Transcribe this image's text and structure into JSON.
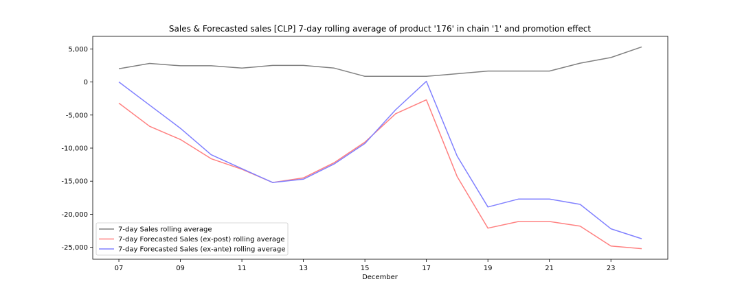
{
  "chart_data": {
    "type": "line",
    "title": "Sales & Forecasted sales [CLP] 7-day rolling average of product '176' in chain '1' and promotion effect",
    "xlabel": "December",
    "ylabel": "",
    "x": [
      7,
      8,
      9,
      10,
      11,
      12,
      13,
      14,
      15,
      16,
      17,
      18,
      19,
      20,
      21,
      22,
      23,
      24
    ],
    "xlim": [
      6.15,
      24.85
    ],
    "ylim": [
      -26800,
      6900
    ],
    "x_ticks": [
      7,
      9,
      11,
      13,
      15,
      17,
      19,
      21,
      23
    ],
    "x_tick_labels": [
      "07",
      "09",
      "11",
      "13",
      "15",
      "17",
      "19",
      "21",
      "23"
    ],
    "y_ticks": [
      5000,
      0,
      -5000,
      -10000,
      -15000,
      -20000,
      -25000
    ],
    "y_tick_labels": [
      "5,000",
      "0",
      "-5,000",
      "-10,000",
      "-15,000",
      "-20,000",
      "-25,000"
    ],
    "grid": false,
    "legend_position": "lower-left",
    "series": [
      {
        "name": "7-day Sales rolling average",
        "color": "#808080",
        "values": [
          2000,
          2800,
          2450,
          2450,
          2100,
          2500,
          2500,
          2100,
          850,
          850,
          850,
          1250,
          1650,
          1650,
          1650,
          2850,
          3700,
          5300
        ]
      },
      {
        "name": "7-day Forecasted Sales (ex-post) rolling average",
        "color": "#ff8080",
        "values": [
          -3200,
          -6700,
          -8700,
          -11600,
          -13200,
          -15200,
          -14500,
          -12200,
          -9100,
          -4800,
          -2700,
          -14300,
          -22100,
          -21100,
          -21100,
          -21800,
          -24800,
          -25200
        ]
      },
      {
        "name": "7-day Forecasted Sales (ex-ante) rolling average",
        "color": "#8080ff",
        "values": [
          0,
          -3500,
          -7000,
          -11000,
          -13100,
          -15200,
          -14700,
          -12400,
          -9300,
          -4200,
          100,
          -11200,
          -18900,
          -17700,
          -17700,
          -18500,
          -22200,
          -23700
        ]
      }
    ]
  }
}
